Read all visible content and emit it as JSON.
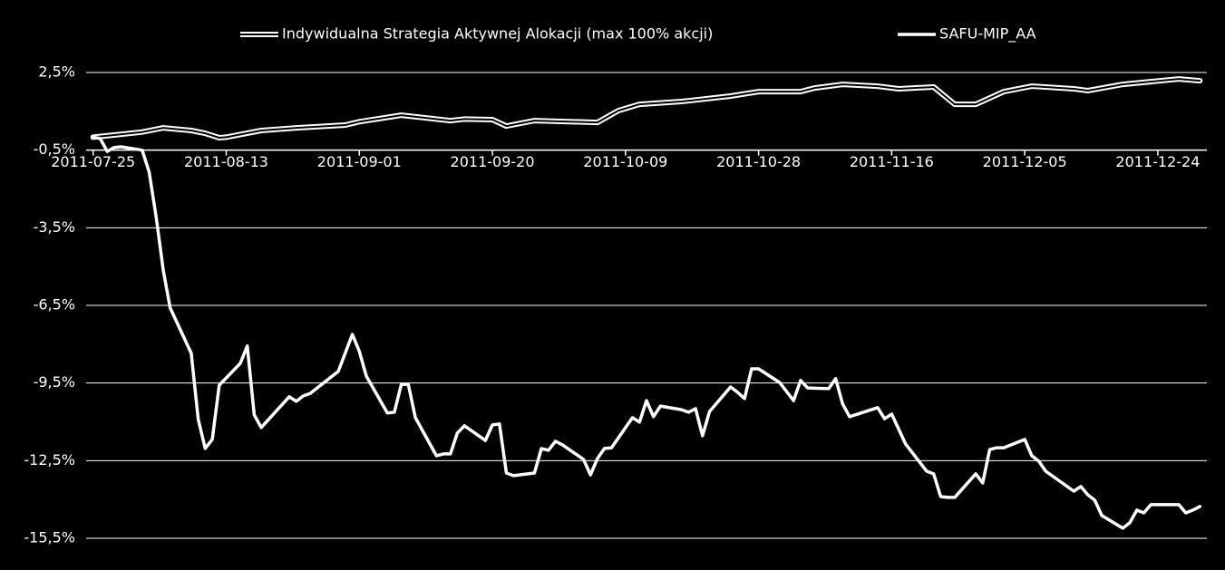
{
  "chart_data": {
    "type": "line",
    "xlim": [
      "2011-07-24",
      "2011-12-31"
    ],
    "xticks": [
      "2011-07-25",
      "2011-08-13",
      "2011-09-01",
      "2011-09-20",
      "2011-10-09",
      "2011-10-28",
      "2011-11-16",
      "2011-12-05",
      "2011-12-24"
    ],
    "ylim": [
      -15.5,
      2.5
    ],
    "yticks": [
      {
        "value": 2.5,
        "label": "2,5%"
      },
      {
        "value": -0.5,
        "label": "-0,5%"
      },
      {
        "value": -3.5,
        "label": "-3,5%"
      },
      {
        "value": -6.5,
        "label": "-6,5%"
      },
      {
        "value": -9.5,
        "label": "-9,5%"
      },
      {
        "value": -12.5,
        "label": "-12,5%"
      },
      {
        "value": -15.5,
        "label": "-15,5%"
      }
    ],
    "x_axis_at": -0.5,
    "grid": true,
    "legend": "top",
    "series": [
      {
        "name": "Indywidualna Strategia Aktywnej Alokacji (max 100% akcji)",
        "color": "#ffffff",
        "line_style": "outlined",
        "x": [
          "2011-07-25",
          "2011-08-01",
          "2011-08-04",
          "2011-08-08",
          "2011-08-10",
          "2011-08-12",
          "2011-08-13",
          "2011-08-18",
          "2011-08-23",
          "2011-08-30",
          "2011-09-01",
          "2011-09-07",
          "2011-09-14",
          "2011-09-16",
          "2011-09-20",
          "2011-09-22",
          "2011-09-26",
          "2011-10-05",
          "2011-10-08",
          "2011-10-11",
          "2011-10-17",
          "2011-10-24",
          "2011-10-28",
          "2011-11-03",
          "2011-11-05",
          "2011-11-09",
          "2011-11-14",
          "2011-11-17",
          "2011-11-22",
          "2011-11-25",
          "2011-11-28",
          "2011-12-02",
          "2011-12-06",
          "2011-12-12",
          "2011-12-14",
          "2011-12-19",
          "2011-12-27",
          "2011-12-30"
        ],
        "values": [
          0.0,
          0.2,
          0.36,
          0.26,
          0.15,
          -0.02,
          0.0,
          0.26,
          0.36,
          0.47,
          0.6,
          0.85,
          0.64,
          0.7,
          0.68,
          0.43,
          0.64,
          0.57,
          1.03,
          1.27,
          1.38,
          1.59,
          1.76,
          1.76,
          1.9,
          2.04,
          1.97,
          1.87,
          1.94,
          1.27,
          1.27,
          1.76,
          1.97,
          1.87,
          1.8,
          2.04,
          2.25,
          2.18
        ]
      },
      {
        "name": "SAFU-MIP_AA",
        "color": "#ffffff",
        "line_style": "solid",
        "x": [
          "2011-07-25",
          "2011-07-26",
          "2011-07-27",
          "2011-07-28",
          "2011-07-29",
          "2011-08-01",
          "2011-08-02",
          "2011-08-03",
          "2011-08-04",
          "2011-08-05",
          "2011-08-08",
          "2011-08-09",
          "2011-08-10",
          "2011-08-11",
          "2011-08-12",
          "2011-08-15",
          "2011-08-16",
          "2011-08-17",
          "2011-08-18",
          "2011-08-22",
          "2011-08-23",
          "2011-08-24",
          "2011-08-25",
          "2011-08-29",
          "2011-08-31",
          "2011-09-01",
          "2011-09-02",
          "2011-09-05",
          "2011-09-06",
          "2011-09-07",
          "2011-09-08",
          "2011-09-09",
          "2011-09-12",
          "2011-09-13",
          "2011-09-14",
          "2011-09-15",
          "2011-09-16",
          "2011-09-19",
          "2011-09-20",
          "2011-09-21",
          "2011-09-22",
          "2011-09-23",
          "2011-09-26",
          "2011-09-27",
          "2011-09-28",
          "2011-09-29",
          "2011-09-30",
          "2011-10-03",
          "2011-10-04",
          "2011-10-05",
          "2011-10-06",
          "2011-10-07",
          "2011-10-10",
          "2011-10-11",
          "2011-10-12",
          "2011-10-13",
          "2011-10-14",
          "2011-10-17",
          "2011-10-18",
          "2011-10-19",
          "2011-10-20",
          "2011-10-21",
          "2011-10-24",
          "2011-10-25",
          "2011-10-26",
          "2011-10-27",
          "2011-10-28",
          "2011-10-31",
          "2011-11-02",
          "2011-11-03",
          "2011-11-04",
          "2011-11-07",
          "2011-11-08",
          "2011-11-09",
          "2011-11-10",
          "2011-11-14",
          "2011-11-15",
          "2011-11-16",
          "2011-11-18",
          "2011-11-21",
          "2011-11-22",
          "2011-11-23",
          "2011-11-24",
          "2011-11-25",
          "2011-11-28",
          "2011-11-29",
          "2011-11-30",
          "2011-12-01",
          "2011-12-02",
          "2011-12-05",
          "2011-12-06",
          "2011-12-07",
          "2011-12-08",
          "2011-12-12",
          "2011-12-13",
          "2011-12-14",
          "2011-12-15",
          "2011-12-16",
          "2011-12-19",
          "2011-12-20",
          "2011-12-21",
          "2011-12-22",
          "2011-12-23",
          "2011-12-27",
          "2011-12-28",
          "2011-12-29",
          "2011-12-30"
        ],
        "values": [
          0.0,
          -0.05,
          -0.55,
          -0.4,
          -0.37,
          -0.5,
          -1.35,
          -3.1,
          -5.13,
          -6.6,
          -8.35,
          -10.9,
          -12.03,
          -11.68,
          -9.58,
          -8.74,
          -8.07,
          -10.73,
          -11.22,
          -10.03,
          -10.21,
          -10.0,
          -9.9,
          -9.05,
          -7.62,
          -8.28,
          -9.23,
          -10.66,
          -10.63,
          -9.55,
          -9.55,
          -10.84,
          -12.31,
          -12.24,
          -12.24,
          -11.43,
          -11.15,
          -11.72,
          -11.12,
          -11.08,
          -12.98,
          -13.08,
          -12.98,
          -12.03,
          -12.1,
          -11.75,
          -11.89,
          -12.45,
          -13.05,
          -12.42,
          -12.03,
          -12.0,
          -10.84,
          -11.01,
          -10.18,
          -10.8,
          -10.39,
          -10.53,
          -10.63,
          -10.49,
          -11.54,
          -10.6,
          -9.65,
          -9.86,
          -10.1,
          -8.95,
          -8.95,
          -9.48,
          -10.18,
          -9.4,
          -9.69,
          -9.72,
          -9.33,
          -10.31,
          -10.8,
          -10.45,
          -10.88,
          -10.7,
          -11.86,
          -12.91,
          -13.01,
          -13.89,
          -13.92,
          -13.92,
          -13.01,
          -13.36,
          -12.07,
          -12.0,
          -12.0,
          -11.68,
          -12.31,
          -12.52,
          -12.91,
          -13.68,
          -13.5,
          -13.82,
          -14.03,
          -14.62,
          -15.11,
          -14.9,
          -14.41,
          -14.52,
          -14.2,
          -14.2,
          -14.52,
          -14.41,
          -14.27
        ]
      }
    ]
  }
}
